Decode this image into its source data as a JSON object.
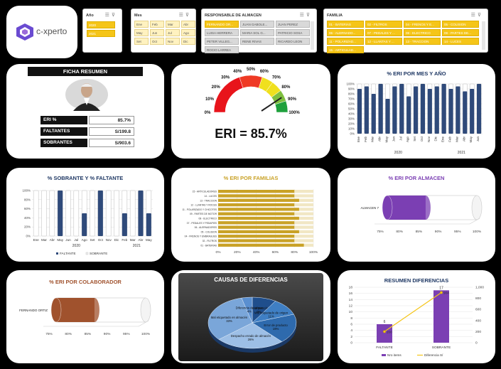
{
  "logo": {
    "brand": "c-xperto"
  },
  "slicers": {
    "anio": {
      "title": "Año",
      "options": [
        "2020",
        "2021"
      ]
    },
    "mes": {
      "title": "Mes",
      "options": [
        "Ene",
        "Feb",
        "Mar",
        "Abr",
        "May",
        "Jun",
        "Jul",
        "Ago",
        "Set",
        "Oct",
        "Nov",
        "Dic"
      ]
    },
    "responsable": {
      "title": "RESPONSABLE DE ALMACEN",
      "options": [
        "FERNANDO OR...",
        "JUAN GABOLE...",
        "JUAN PEREZ",
        "LUISA HERRERA",
        "MARIA SOL G...",
        "PATRICIO SOSA",
        "PETER VILLEG...",
        "RENE RIVAS",
        "RICARDO LEON",
        "ROCIO LARREA"
      ]
    },
    "familia": {
      "title": "FAMILIA",
      "options": [
        "01 - BATERIAS",
        "02 - FILTROS",
        "04 - FRENOS Y E...",
        "05 - COLISION",
        "06 - ALERNADO...",
        "07 - PEDALES Y ...",
        "08 - ELECTRICO",
        "09 - PARTES DE...",
        "11 - POLARIZAD...",
        "12 - LLANTAS Y ...",
        "13 - TRACCION",
        "14 - LUCES",
        "15 - ARTICULAD..."
      ]
    }
  },
  "ficha": {
    "title": "FICHA RESUMEN",
    "rows": [
      {
        "label": "ERI %",
        "value": "85.7%"
      },
      {
        "label": "FALTANTES",
        "value": "S/199.8"
      },
      {
        "label": "SOBRANTES",
        "value": "S/903.6"
      }
    ]
  },
  "gauge": {
    "labels": [
      "0%",
      "10%",
      "20%",
      "30%",
      "40%",
      "50%",
      "60%",
      "70%",
      "80%",
      "90%",
      "100%"
    ],
    "value": 85.7,
    "caption": "ERI = 85.7%"
  },
  "colors": {
    "navy": "#2f4a7a",
    "gold": "#c9a227",
    "purple": "#7b3fb3",
    "brown": "#a0522d",
    "accent_yellow": "#f5c518"
  },
  "charts": {
    "eri_mes": {
      "title": "% ERI POR MES Y AÑO"
    },
    "sobrante_faltante": {
      "title": "% SOBRANTE Y % FALTANTE",
      "legend": [
        "FALTANTE",
        "SOBRANTE"
      ]
    },
    "eri_familias": {
      "title": "% ERI POR FAMILIAS"
    },
    "eri_almacen": {
      "title": "% ERI POR ALMACEN"
    },
    "eri_colaborador": {
      "title": "% ERI POR COLABORADOR"
    },
    "causas": {
      "title": "CAUSAS DE DIFERENCIAS"
    },
    "resumen": {
      "title": "RESUMEN DIFERENCIAS",
      "legend": [
        "Nro items",
        "Diferencia S/"
      ]
    }
  },
  "chart_data": [
    {
      "type": "bar",
      "title": "% ERI POR MES Y AÑO",
      "categories": [
        "Ene",
        "Feb",
        "Mar",
        "Abr",
        "May",
        "Jun",
        "Jul",
        "Ago",
        "Set",
        "Oct",
        "Nov",
        "Dic",
        "Ene",
        "Feb",
        "Mar",
        "Abr",
        "May",
        "Jun"
      ],
      "groups": [
        "2020",
        "2021"
      ],
      "ylim": [
        0,
        100
      ],
      "yticks": [
        "0%",
        "10%",
        "20%",
        "30%",
        "40%",
        "50%",
        "60%",
        "70%",
        "80%",
        "90%",
        "100%"
      ],
      "values": [
        90,
        95,
        80,
        100,
        70,
        95,
        100,
        75,
        95,
        100,
        90,
        95,
        100,
        90,
        95,
        85,
        90,
        100
      ]
    },
    {
      "type": "bar",
      "title": "% SOBRANTE Y % FALTANTE",
      "categories": [
        "Ene",
        "Mar",
        "Abr",
        "May",
        "Jun",
        "Jul",
        "Ago",
        "Set",
        "Oct",
        "Nov",
        "Dic",
        "Feb",
        "Mar",
        "Abr",
        "May"
      ],
      "groups": [
        "2020",
        "2021"
      ],
      "ylim": [
        0,
        100
      ],
      "yticks": [
        "0%",
        "20%",
        "40%",
        "60%",
        "80%",
        "100%"
      ],
      "series": [
        {
          "name": "FALTANTE",
          "values": [
            0,
            0,
            0,
            100,
            0,
            0,
            50,
            0,
            100,
            0,
            0,
            50,
            0,
            100,
            50
          ]
        },
        {
          "name": "SOBRANTE",
          "values": [
            100,
            100,
            100,
            0,
            100,
            100,
            50,
            100,
            0,
            100,
            100,
            50,
            100,
            0,
            50
          ]
        }
      ]
    },
    {
      "type": "bar",
      "title": "% ERI POR FAMILIAS",
      "categories": [
        "15 - ARTICULADORES",
        "14 - LUCES",
        "13 - TRACCION",
        "12 - LLANTAS Y ROCES",
        "11 - POLARIZADO Y CHICOTES",
        "09 - PARTES DE MOTOR",
        "08 - ELECTRICO",
        "07 - PEDALES Y PEDAPIES",
        "06 - ALERNADORES",
        "05 - COLISION",
        "04 - FRENOS Y EMBRAGUES",
        "02 - FILTROS",
        "01 - BATERIAS"
      ],
      "xticks": [
        "0%",
        "20%",
        "40%",
        "60%",
        "80%",
        "100%"
      ],
      "xlim": [
        0,
        100
      ],
      "values": [
        80,
        80,
        85,
        80,
        85,
        80,
        85,
        80,
        80,
        85,
        80,
        80,
        90
      ]
    },
    {
      "type": "bar",
      "title": "% ERI POR ALMACEN",
      "categories": [
        "ALMACEN 7"
      ],
      "xticks": [
        "75%",
        "80%",
        "85%",
        "90%",
        "95%",
        "100%"
      ],
      "xlim": [
        75,
        100
      ],
      "values": [
        85.7
      ]
    },
    {
      "type": "bar",
      "title": "% ERI POR COLABORADOR",
      "categories": [
        "FERNANDO ORTIZ"
      ],
      "xticks": [
        "75%",
        "80%",
        "85%",
        "90%",
        "95%",
        "100%"
      ],
      "xlim": [
        75,
        100
      ],
      "values": [
        85.7
      ]
    },
    {
      "type": "pie",
      "title": "CAUSAS DE DIFERENCIAS",
      "labels": [
        "Material mezclado",
        "Mal etiquetado de origen",
        "Error de producto",
        "Despacho errado de almacén",
        "Mal etiquetado en almacén",
        "Diferencia de origen"
      ],
      "values": [
        9,
        11,
        19,
        26,
        33,
        4
      ]
    },
    {
      "type": "bar",
      "title": "RESUMEN DIFERENCIAS",
      "categories": [
        "FALTANTE",
        "SOBRANTE"
      ],
      "series": [
        {
          "name": "Nro items",
          "values": [
            6,
            17
          ]
        },
        {
          "name": "Diferencia S/",
          "values": [
            200,
            904
          ]
        }
      ],
      "ylim": [
        0,
        18
      ],
      "y2lim": [
        0,
        1000
      ],
      "yticks": [
        "0",
        "2",
        "4",
        "6",
        "8",
        "10",
        "12",
        "14",
        "16",
        "18"
      ],
      "y2ticks": [
        "0",
        "200",
        "400",
        "600",
        "800",
        "1,000"
      ],
      "data_labels": [
        "6",
        "200",
        "17",
        "904"
      ]
    }
  ]
}
